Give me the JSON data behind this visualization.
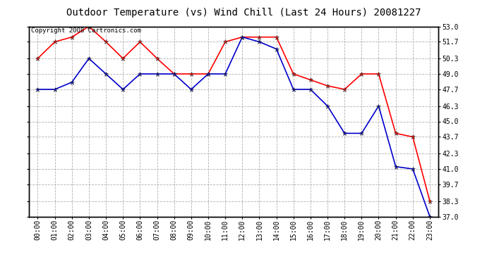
{
  "title": "Outdoor Temperature (vs) Wind Chill (Last 24 Hours) 20081227",
  "copyright_text": "Copyright 2008 Cartronics.com",
  "hours": [
    "00:00",
    "01:00",
    "02:00",
    "03:00",
    "04:00",
    "05:00",
    "06:00",
    "07:00",
    "08:00",
    "09:00",
    "10:00",
    "11:00",
    "12:00",
    "13:00",
    "14:00",
    "15:00",
    "16:00",
    "17:00",
    "18:00",
    "19:00",
    "20:00",
    "21:00",
    "22:00",
    "23:00"
  ],
  "temp": [
    50.3,
    51.7,
    52.1,
    53.0,
    51.7,
    50.3,
    51.7,
    50.3,
    49.0,
    49.0,
    49.0,
    51.7,
    52.1,
    52.1,
    52.1,
    49.0,
    48.5,
    48.0,
    47.7,
    49.0,
    49.0,
    44.0,
    43.7,
    38.3
  ],
  "wind_chill": [
    47.7,
    47.7,
    48.3,
    50.3,
    49.0,
    47.7,
    49.0,
    49.0,
    49.0,
    47.7,
    49.0,
    49.0,
    52.1,
    51.7,
    51.1,
    47.7,
    47.7,
    46.3,
    44.0,
    44.0,
    46.3,
    41.2,
    41.0,
    37.0
  ],
  "temp_color": "#ff0000",
  "wind_chill_color": "#0000cc",
  "bg_color": "#ffffff",
  "grid_color": "#b0b0b0",
  "ylim_min": 37.0,
  "ylim_max": 53.0,
  "yticks": [
    37.0,
    38.3,
    39.7,
    41.0,
    42.3,
    43.7,
    45.0,
    46.3,
    47.7,
    49.0,
    50.3,
    51.7,
    53.0
  ],
  "title_fontsize": 10,
  "tick_fontsize": 7,
  "copyright_fontsize": 6.5
}
